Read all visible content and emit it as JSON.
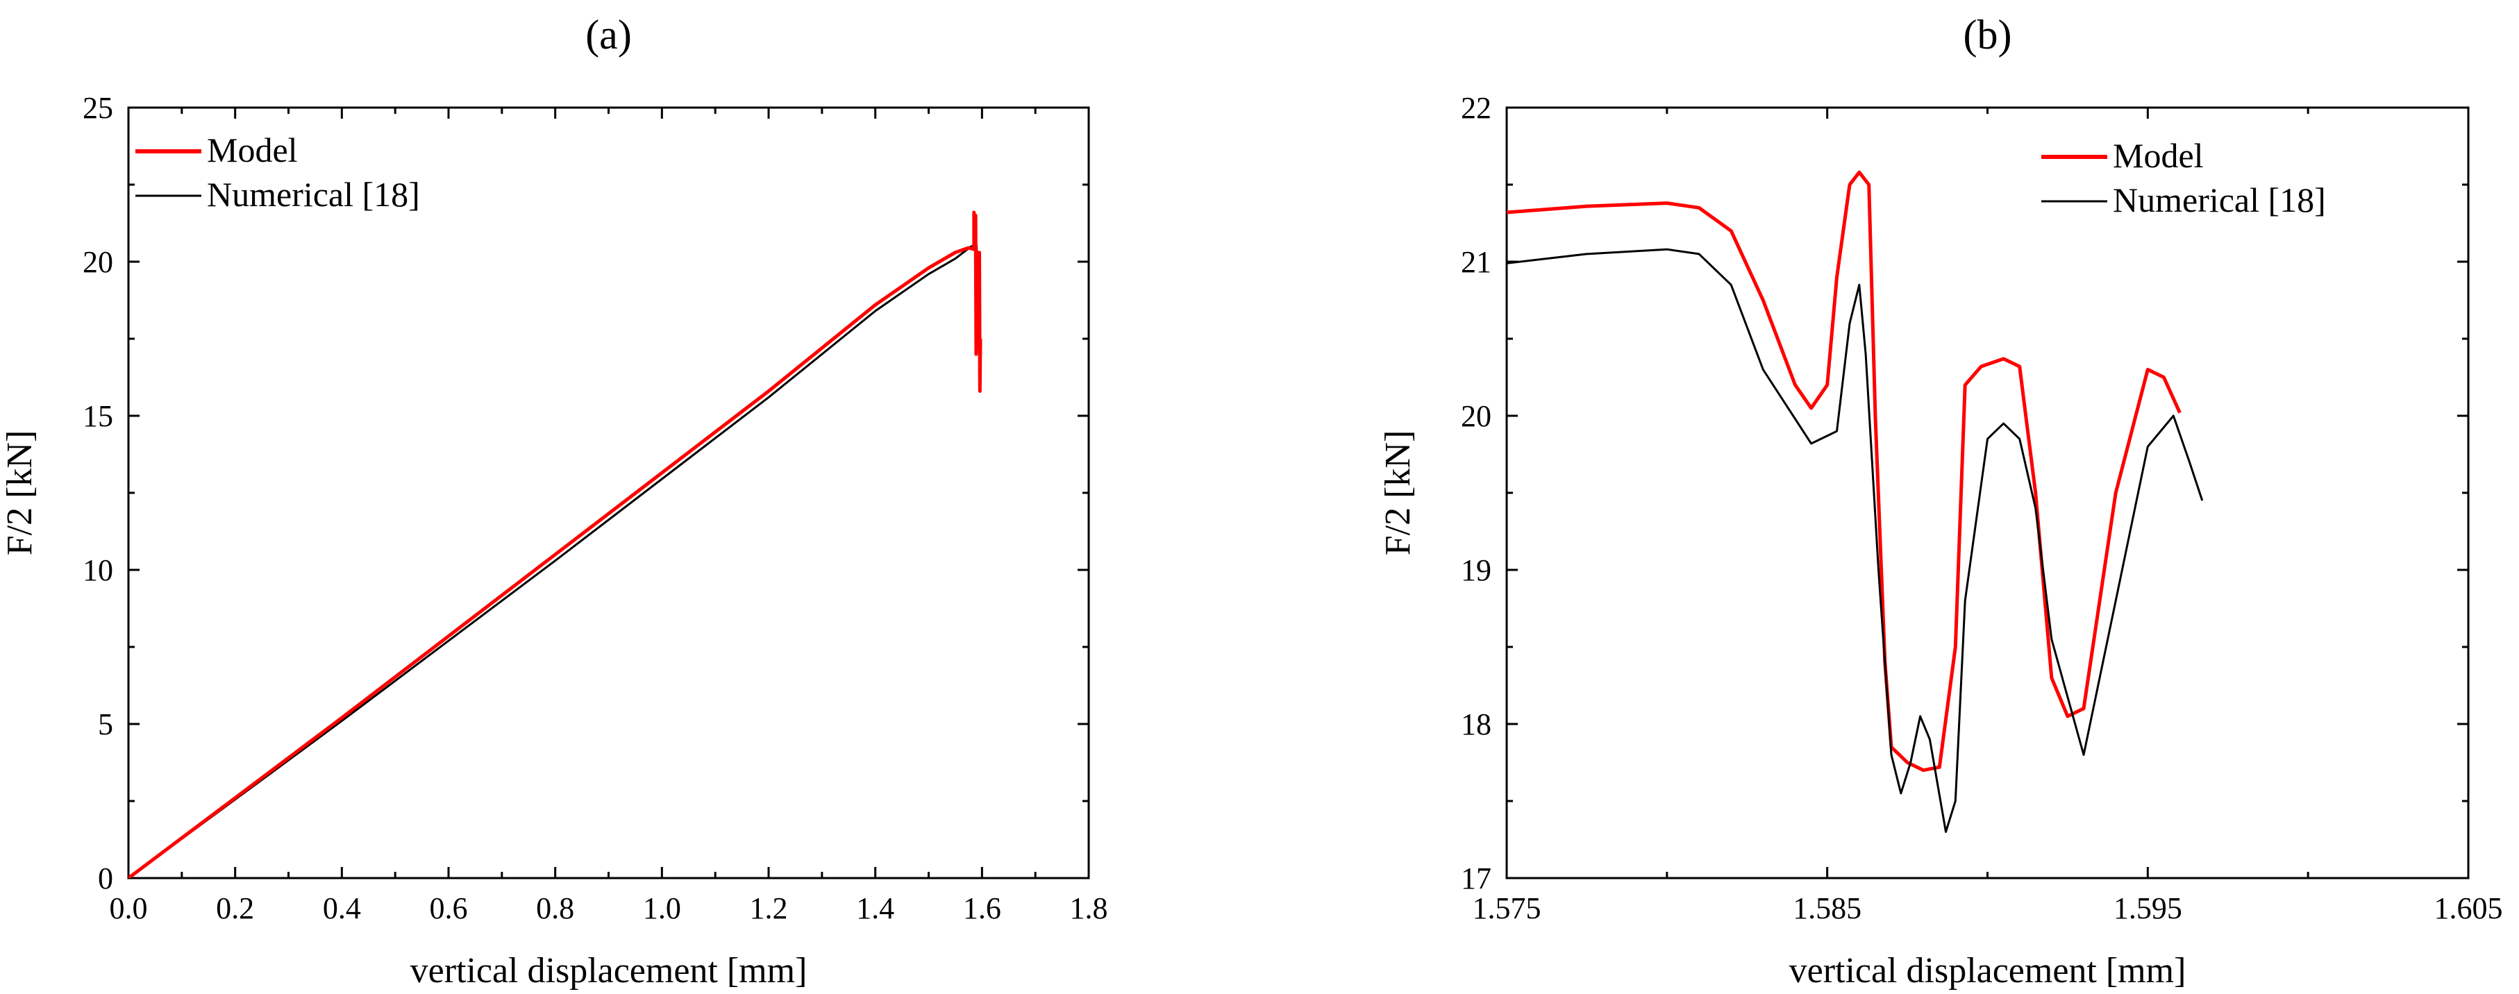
{
  "chart_data": [
    {
      "type": "line",
      "panel_label": "(a)",
      "title": "",
      "xlabel": "vertical displacement [mm]",
      "ylabel": "F/2 [kN]",
      "xlim": [
        0.0,
        1.8
      ],
      "ylim": [
        0,
        25
      ],
      "x_ticks": [
        "0.0",
        "0.2",
        "0.4",
        "0.6",
        "0.8",
        "1.0",
        "1.2",
        "1.4",
        "1.6",
        "1.8"
      ],
      "y_ticks": [
        "0",
        "5",
        "10",
        "15",
        "20",
        "25"
      ],
      "grid": false,
      "legend_position": "top-left",
      "series": [
        {
          "name": "Model",
          "color": "#ff0000",
          "points": [
            [
              0.0,
              0.0
            ],
            [
              0.4,
              5.2
            ],
            [
              0.8,
              10.5
            ],
            [
              1.2,
              15.8
            ],
            [
              1.4,
              18.6
            ],
            [
              1.5,
              19.8
            ],
            [
              1.55,
              20.3
            ],
            [
              1.575,
              20.45
            ],
            [
              1.585,
              20.4
            ],
            [
              1.585,
              21.6
            ],
            [
              1.586,
              20.5
            ],
            [
              1.588,
              21.5
            ],
            [
              1.589,
              17.0
            ],
            [
              1.591,
              20.3
            ],
            [
              1.593,
              18.0
            ],
            [
              1.595,
              20.3
            ],
            [
              1.596,
              15.8
            ],
            [
              1.597,
              17.5
            ]
          ]
        },
        {
          "name": "Numerical [18]",
          "color": "#000000",
          "points": [
            [
              0.0,
              0.0
            ],
            [
              0.4,
              5.1
            ],
            [
              0.8,
              10.3
            ],
            [
              1.2,
              15.6
            ],
            [
              1.4,
              18.4
            ],
            [
              1.5,
              19.6
            ],
            [
              1.55,
              20.1
            ],
            [
              1.58,
              20.5
            ],
            [
              1.59,
              20.5
            ],
            [
              1.593,
              18.5
            ],
            [
              1.595,
              20.2
            ],
            [
              1.597,
              16.0
            ]
          ]
        }
      ]
    },
    {
      "type": "line",
      "panel_label": "(b)",
      "title": "",
      "xlabel": "vertical displacement [mm]",
      "ylabel": "F/2 [kN]",
      "xlim": [
        1.575,
        1.605
      ],
      "ylim": [
        17,
        22
      ],
      "x_ticks": [
        "1.575",
        "1.585",
        "1.595",
        "1.605"
      ],
      "y_ticks": [
        "17",
        "18",
        "19",
        "20",
        "21",
        "22"
      ],
      "grid": false,
      "legend_position": "top-right",
      "series": [
        {
          "name": "Model",
          "color": "#ff0000",
          "points": [
            [
              1.575,
              21.32
            ],
            [
              1.5775,
              21.36
            ],
            [
              1.58,
              21.38
            ],
            [
              1.581,
              21.35
            ],
            [
              1.582,
              21.2
            ],
            [
              1.583,
              20.75
            ],
            [
              1.584,
              20.2
            ],
            [
              1.5845,
              20.05
            ],
            [
              1.585,
              20.2
            ],
            [
              1.5853,
              20.9
            ],
            [
              1.5857,
              21.5
            ],
            [
              1.586,
              21.58
            ],
            [
              1.5863,
              21.5
            ],
            [
              1.5865,
              20.0
            ],
            [
              1.5868,
              18.4
            ],
            [
              1.587,
              17.85
            ],
            [
              1.5875,
              17.75
            ],
            [
              1.588,
              17.7
            ],
            [
              1.5885,
              17.72
            ],
            [
              1.589,
              18.5
            ],
            [
              1.5893,
              20.2
            ],
            [
              1.5898,
              20.32
            ],
            [
              1.5905,
              20.37
            ],
            [
              1.591,
              20.32
            ],
            [
              1.5915,
              19.5
            ],
            [
              1.592,
              18.3
            ],
            [
              1.5925,
              18.05
            ],
            [
              1.593,
              18.1
            ],
            [
              1.594,
              19.5
            ],
            [
              1.595,
              20.3
            ],
            [
              1.5955,
              20.25
            ],
            [
              1.596,
              20.02
            ]
          ]
        },
        {
          "name": "Numerical [18]",
          "color": "#000000",
          "points": [
            [
              1.575,
              20.99
            ],
            [
              1.5775,
              21.05
            ],
            [
              1.58,
              21.08
            ],
            [
              1.581,
              21.05
            ],
            [
              1.582,
              20.85
            ],
            [
              1.583,
              20.3
            ],
            [
              1.5845,
              19.82
            ],
            [
              1.585,
              19.87
            ],
            [
              1.5853,
              19.9
            ],
            [
              1.5857,
              20.6
            ],
            [
              1.586,
              20.85
            ],
            [
              1.5862,
              20.4
            ],
            [
              1.5866,
              19.0
            ],
            [
              1.587,
              17.8
            ],
            [
              1.5873,
              17.55
            ],
            [
              1.5876,
              17.75
            ],
            [
              1.5879,
              18.05
            ],
            [
              1.5882,
              17.9
            ],
            [
              1.5887,
              17.3
            ],
            [
              1.589,
              17.5
            ],
            [
              1.5893,
              18.8
            ],
            [
              1.59,
              19.85
            ],
            [
              1.5905,
              19.95
            ],
            [
              1.591,
              19.85
            ],
            [
              1.5915,
              19.4
            ],
            [
              1.592,
              18.55
            ],
            [
              1.593,
              17.8
            ],
            [
              1.594,
              18.8
            ],
            [
              1.595,
              19.8
            ],
            [
              1.5958,
              20.0
            ],
            [
              1.5963,
              19.7
            ],
            [
              1.5967,
              19.45
            ]
          ]
        }
      ]
    }
  ]
}
